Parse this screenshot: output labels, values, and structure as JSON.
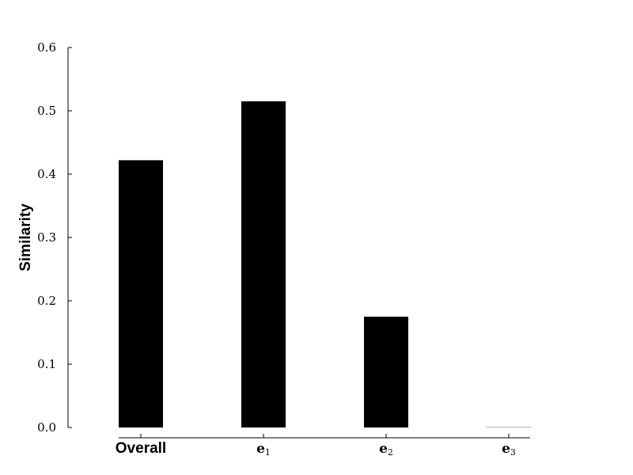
{
  "chart_data": {
    "type": "bar",
    "title": "",
    "xlabel": "",
    "ylabel": "Similarity",
    "ylim": [
      0,
      0.6
    ],
    "yticks": [
      "0.0",
      "0.1",
      "0.2",
      "0.3",
      "0.4",
      "0.5",
      "0.6"
    ],
    "categories": [
      {
        "label": "Overall",
        "base": "Overall",
        "sub": ""
      },
      {
        "label": "e1",
        "base": "e",
        "sub": "1"
      },
      {
        "label": "e2",
        "base": "e",
        "sub": "2"
      },
      {
        "label": "e3",
        "base": "e",
        "sub": "3"
      }
    ],
    "values": [
      0.422,
      0.515,
      0.175,
      0.001
    ],
    "bar_color": "#000000",
    "grid": false,
    "legend": "none"
  }
}
